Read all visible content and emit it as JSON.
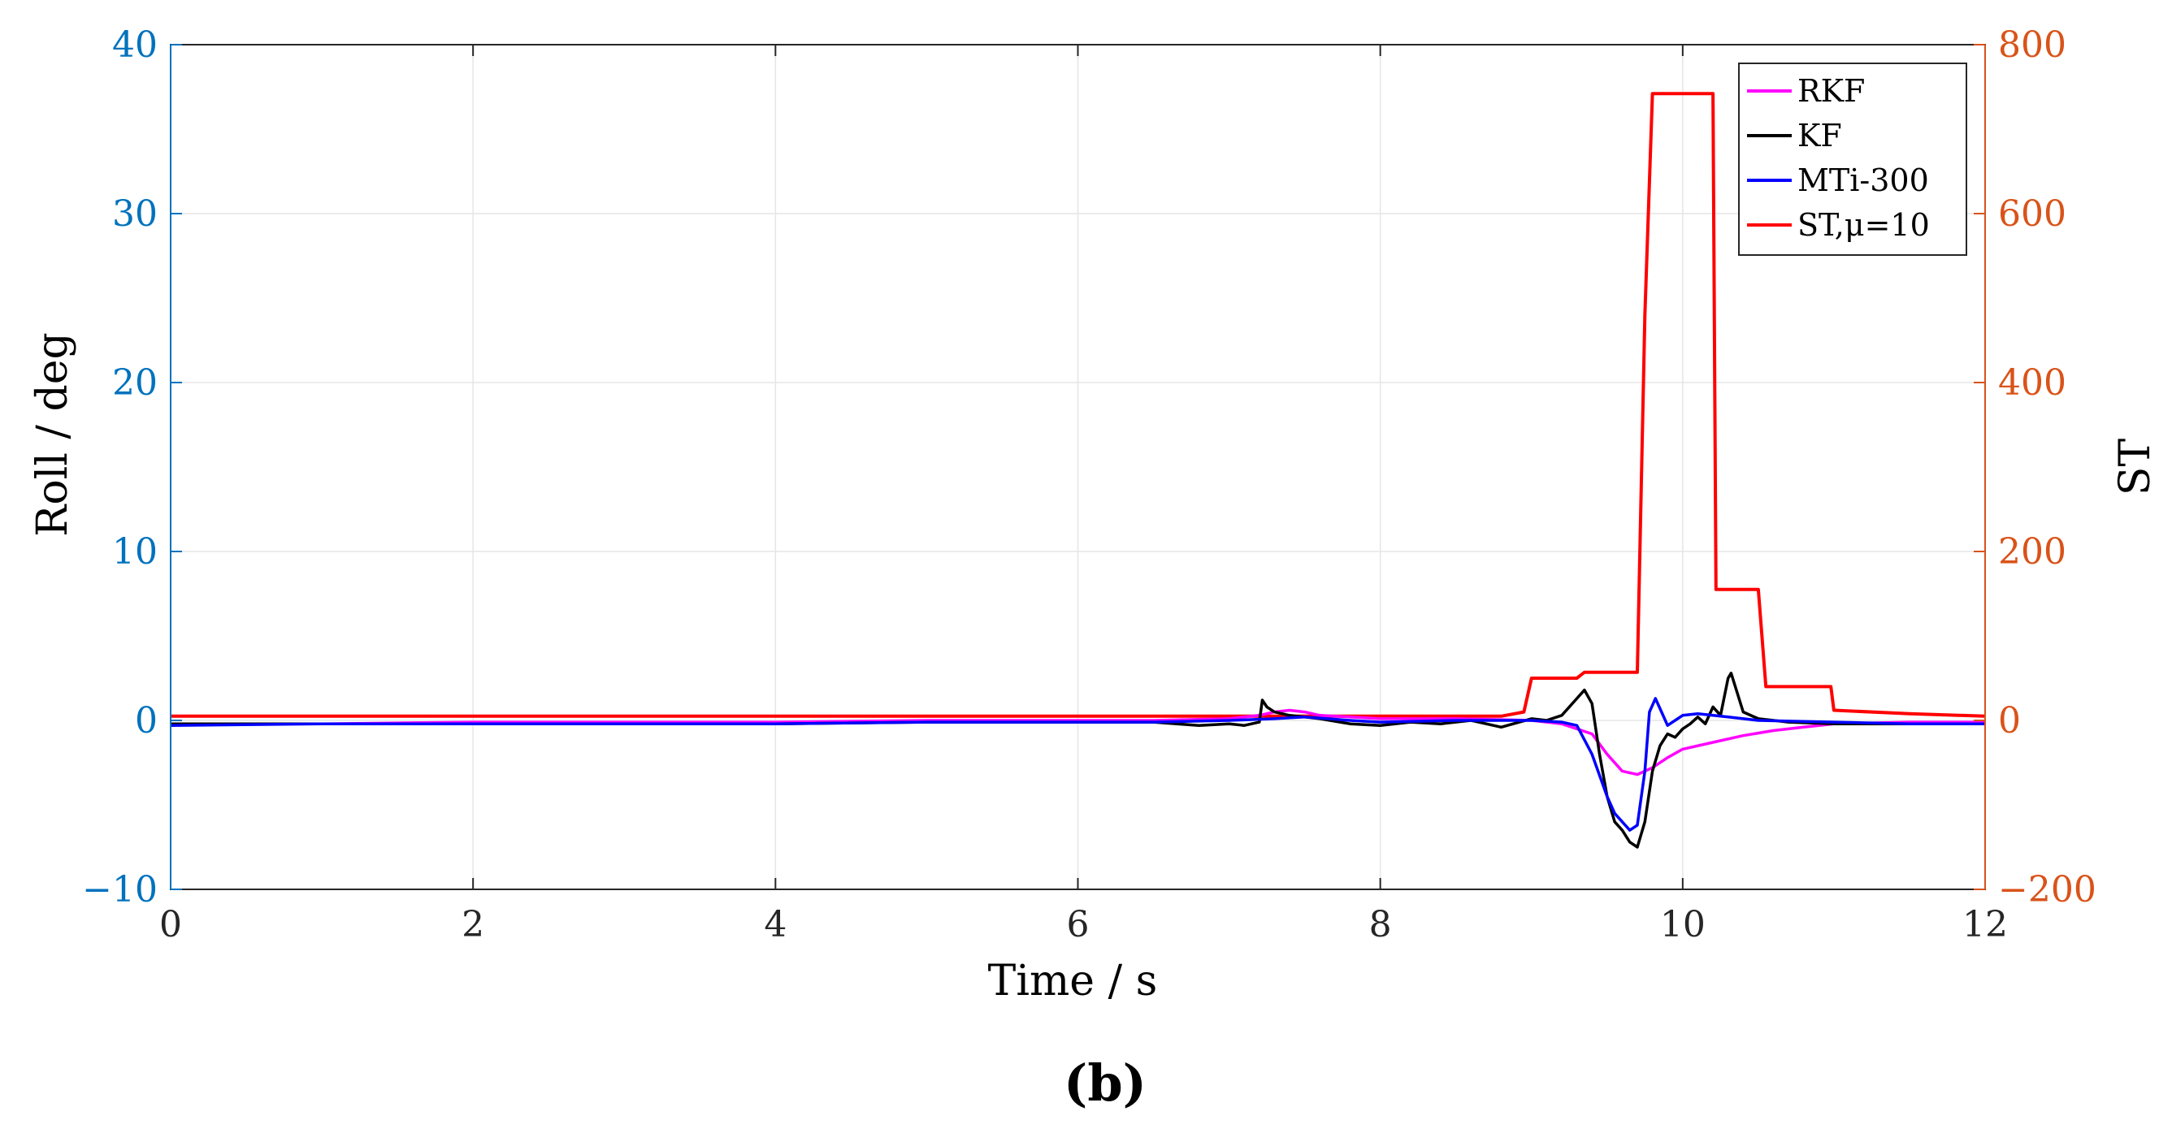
{
  "chart_data": {
    "type": "line",
    "xlabel": "Time / s",
    "ylabel_left": "Roll / deg",
    "ylabel_right": "ST",
    "xlim": [
      0,
      12
    ],
    "ylim_left": [
      -10,
      40
    ],
    "ylim_right": [
      -200,
      800
    ],
    "x_ticks": [
      "0",
      "2",
      "4",
      "6",
      "8",
      "10",
      "12"
    ],
    "y_ticks_left": [
      "−10",
      "0",
      "10",
      "20",
      "30",
      "40"
    ],
    "y_ticks_right": [
      "−200",
      "0",
      "200",
      "400",
      "600",
      "800"
    ],
    "grid": true,
    "legend_position": "top-right",
    "colors": {
      "left_axis": "#0072BD",
      "right_axis": "#D95319",
      "RKF": "#FF00FF",
      "KF": "#000000",
      "MTi-300": "#0000FF",
      "ST": "#FF0000"
    },
    "series": [
      {
        "name": "RKF",
        "axis": "left",
        "x": [
          0,
          1,
          2,
          3,
          4,
          5,
          6,
          6.5,
          7.0,
          7.2,
          7.3,
          7.4,
          7.5,
          7.6,
          7.8,
          8.0,
          8.5,
          9.0,
          9.2,
          9.4,
          9.5,
          9.6,
          9.7,
          9.8,
          9.9,
          10.0,
          10.2,
          10.4,
          10.6,
          10.8,
          11.0,
          11.5,
          12.0
        ],
        "y": [
          -0.2,
          -0.2,
          -0.1,
          -0.1,
          -0.1,
          0.0,
          0.0,
          0.0,
          0.1,
          0.3,
          0.5,
          0.6,
          0.5,
          0.3,
          0.2,
          0.1,
          0.1,
          0.0,
          -0.2,
          -0.8,
          -2.0,
          -3.0,
          -3.2,
          -2.8,
          -2.2,
          -1.7,
          -1.3,
          -0.9,
          -0.6,
          -0.4,
          -0.2,
          -0.1,
          -0.1
        ]
      },
      {
        "name": "KF",
        "axis": "left",
        "x": [
          0,
          1,
          2,
          3,
          4,
          5,
          6,
          6.5,
          6.8,
          7.0,
          7.1,
          7.2,
          7.22,
          7.25,
          7.3,
          7.4,
          7.5,
          7.6,
          7.8,
          8.0,
          8.2,
          8.4,
          8.6,
          8.8,
          9.0,
          9.1,
          9.2,
          9.3,
          9.35,
          9.4,
          9.45,
          9.5,
          9.55,
          9.6,
          9.65,
          9.7,
          9.75,
          9.8,
          9.85,
          9.9,
          9.95,
          10.0,
          10.05,
          10.1,
          10.15,
          10.2,
          10.25,
          10.3,
          10.32,
          10.4,
          10.5,
          10.7,
          11.0,
          11.5,
          12.0
        ],
        "y": [
          -0.2,
          -0.2,
          -0.2,
          -0.2,
          -0.2,
          -0.1,
          -0.1,
          -0.1,
          -0.3,
          -0.2,
          -0.3,
          -0.1,
          1.2,
          0.8,
          0.5,
          0.3,
          0.2,
          0.1,
          -0.2,
          -0.3,
          -0.1,
          -0.2,
          0.0,
          -0.4,
          0.1,
          0.0,
          0.3,
          1.3,
          1.8,
          1.0,
          -2.0,
          -4.5,
          -6.0,
          -6.5,
          -7.2,
          -7.5,
          -6.0,
          -3.0,
          -1.5,
          -0.8,
          -1.0,
          -0.5,
          -0.2,
          0.2,
          -0.2,
          0.8,
          0.3,
          2.5,
          2.8,
          0.5,
          0.1,
          -0.1,
          -0.2,
          -0.2,
          -0.2
        ]
      },
      {
        "name": "MTi-300",
        "axis": "left",
        "x": [
          0,
          1,
          2,
          3,
          4,
          5,
          6,
          6.5,
          7.0,
          7.3,
          7.5,
          7.8,
          8.0,
          8.5,
          9.0,
          9.2,
          9.3,
          9.4,
          9.5,
          9.55,
          9.6,
          9.65,
          9.7,
          9.75,
          9.78,
          9.82,
          9.86,
          9.9,
          9.95,
          10.0,
          10.1,
          10.2,
          10.3,
          10.4,
          10.5,
          11.0,
          11.5,
          12.0
        ],
        "y": [
          -0.3,
          -0.2,
          -0.2,
          -0.2,
          -0.2,
          -0.1,
          -0.1,
          -0.1,
          0.0,
          0.1,
          0.2,
          0.0,
          -0.1,
          0.0,
          0.0,
          -0.1,
          -0.3,
          -2.0,
          -4.5,
          -5.5,
          -6.0,
          -6.5,
          -6.2,
          -3.0,
          0.5,
          1.3,
          0.5,
          -0.3,
          0.0,
          0.3,
          0.4,
          0.3,
          0.2,
          0.1,
          0.0,
          -0.1,
          -0.2,
          -0.2
        ]
      },
      {
        "name": "ST,μ=10",
        "axis": "right",
        "x": [
          0,
          5,
          8.8,
          8.95,
          9.0,
          9.3,
          9.35,
          9.7,
          9.75,
          9.8,
          10.2,
          10.22,
          10.5,
          10.55,
          10.98,
          11.0,
          11.5,
          12.0
        ],
        "y": [
          5,
          5,
          5,
          10,
          50,
          50,
          57,
          57,
          480,
          742,
          742,
          155,
          155,
          40,
          40,
          12,
          8,
          5
        ]
      }
    ]
  },
  "caption": "(b)"
}
